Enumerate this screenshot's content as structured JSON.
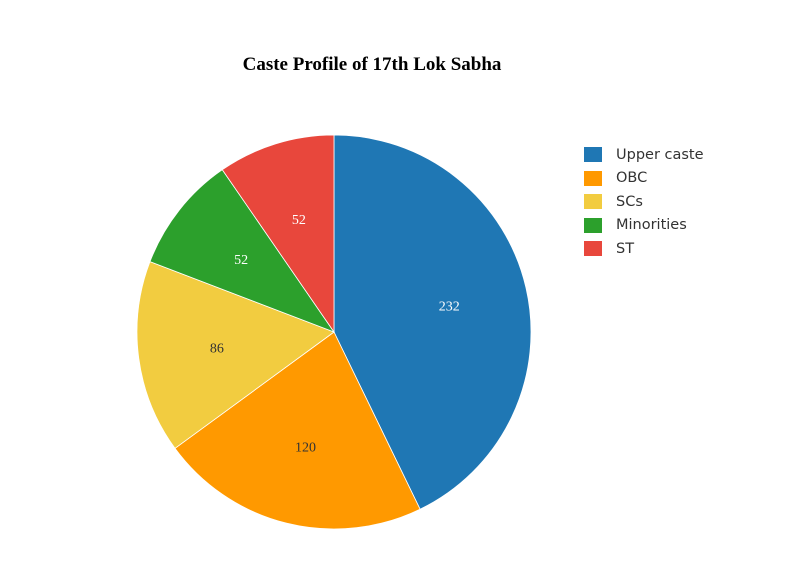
{
  "chart_data": {
    "type": "pie",
    "title": "Caste Profile of 17th Lok Sabha",
    "legend_position": "right",
    "direction": "clockwise",
    "slices": [
      {
        "label": "Upper caste",
        "value": 232,
        "color": "#1f77b4",
        "label_color": "#ffffff"
      },
      {
        "label": "OBC",
        "value": 120,
        "color": "#ff9900",
        "label_color": "#333333"
      },
      {
        "label": "SCs",
        "value": 86,
        "color": "#f2cc40",
        "label_color": "#333333"
      },
      {
        "label": "Minorities",
        "value": 52,
        "color": "#2ca02c",
        "label_color": "#ffffff"
      },
      {
        "label": "ST",
        "value": 52,
        "color": "#e8473c",
        "label_color": "#ffffff"
      }
    ]
  }
}
